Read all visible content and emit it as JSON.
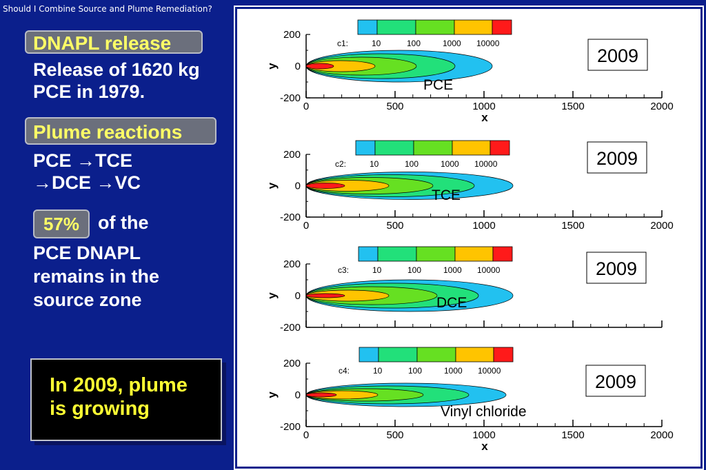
{
  "header": {
    "title": "Should I Combine Source and Plume Remediation?"
  },
  "left": {
    "dnapl_tag": "DNAPL release",
    "release_line1": "Release of 1620 kg",
    "release_line2": "PCE in 1979.",
    "plume_tag": "Plume reactions",
    "reaction_line1": "PCE →TCE",
    "reaction_line2": "→DCE →VC",
    "pct_tag": "57%",
    "pct_suffix": "of the",
    "remain_line1": "PCE DNAPL",
    "remain_line2": "remains in the",
    "remain_line3": "source zone"
  },
  "callout": {
    "line1": "In 2009, plume",
    "line2": "is growing"
  },
  "legend_colors": [
    "#22c1f0",
    "#22e07a",
    "#66e022",
    "#ffc400",
    "#ff1a1a"
  ],
  "legend_ticks": [
    "10",
    "100",
    "1000",
    "10000"
  ],
  "plots": [
    {
      "var_label": "c1:",
      "name": "PCE",
      "year": "2009",
      "yticks": [
        "200",
        "0",
        "-200"
      ],
      "xticks": [
        "0",
        "500",
        "1000",
        "1500",
        "2000"
      ],
      "xlabel": "x",
      "ylabel": "y"
    },
    {
      "var_label": "c2:",
      "name": "TCE",
      "year": "2009",
      "yticks": [
        "200",
        "0",
        "-200"
      ],
      "xticks": [
        "0",
        "500",
        "1000",
        "1500",
        "2000"
      ],
      "xlabel": "",
      "ylabel": "y"
    },
    {
      "var_label": "c3:",
      "name": "DCE",
      "year": "2009",
      "yticks": [
        "200",
        "0",
        "-200"
      ],
      "xticks": [],
      "xlabel": "",
      "ylabel": "y"
    },
    {
      "var_label": "c4:",
      "name": "Vinyl chloride",
      "year": "2009",
      "yticks": [
        "200",
        "0",
        "-200"
      ],
      "xticks": [
        "0",
        "500",
        "1000",
        "1500",
        "2000"
      ],
      "xlabel": "x",
      "ylabel": "y"
    }
  ]
}
